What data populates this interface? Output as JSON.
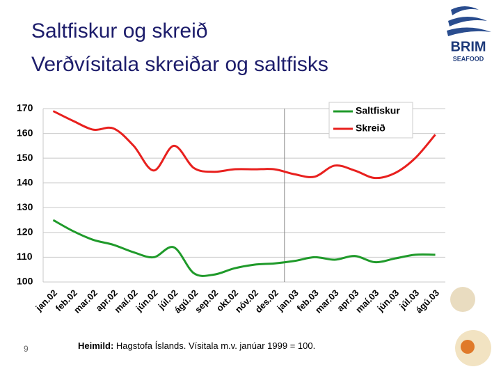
{
  "slide": {
    "title_line1": "Saltfiskur og skreið",
    "title_line2": "Verðvísitala skreiðar og saltfisks",
    "page_number": "9",
    "source_label": "Heimild:",
    "source_text": "Hagstofa Íslands. Vísitala m.v. janúar 1999 = 100.",
    "logo": "BRIM",
    "logo_sub": "SEAFOOD"
  },
  "chart_data": {
    "type": "line",
    "categories": [
      "jan.02",
      "feb.02",
      "mar.02",
      "apr.02",
      "maí.02",
      "jún.02",
      "júl.02",
      "ágú.02",
      "sep.02",
      "okt.02",
      "nóv.02",
      "des.02",
      "jan.03",
      "feb.03",
      "mar.03",
      "apr.03",
      "maí.03",
      "jún.03",
      "júl.03",
      "ágú.03"
    ],
    "series": [
      {
        "name": "Saltfiskur",
        "color": "#1f9a2a",
        "values": [
          125,
          120.5,
          117,
          115,
          112,
          110,
          114,
          103.5,
          103,
          105.5,
          107,
          107.5,
          108.5,
          110,
          109,
          110.5,
          108,
          109.5,
          111,
          111
        ]
      },
      {
        "name": "Skreið",
        "color": "#e8201e",
        "values": [
          169,
          165,
          161.5,
          162,
          155,
          145,
          155,
          146,
          144.5,
          145.5,
          145.5,
          145.5,
          143.5,
          142.5,
          147,
          145,
          142,
          144,
          150,
          159.5
        ]
      }
    ],
    "ylim": [
      100,
      170
    ],
    "yticks": [
      100,
      110,
      120,
      130,
      140,
      150,
      160,
      170
    ],
    "grid": true,
    "legend": "top-right"
  }
}
